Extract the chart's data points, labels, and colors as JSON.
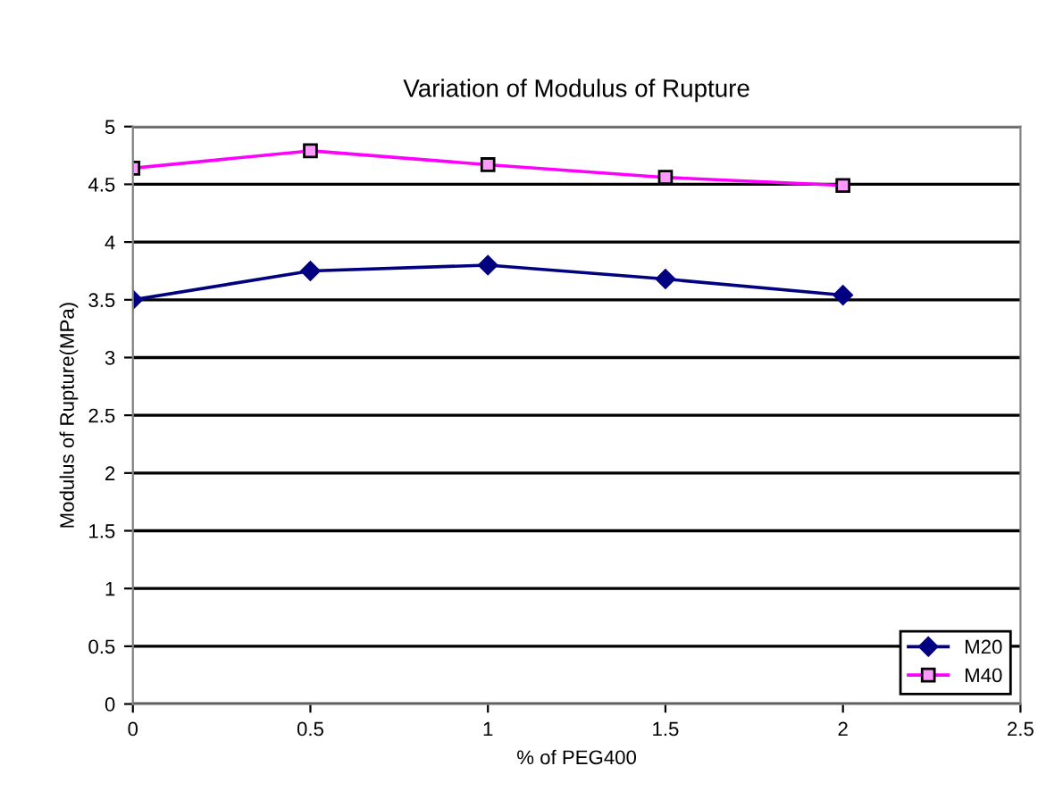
{
  "chart_data": {
    "type": "line",
    "title": "Variation of Modulus of Rupture",
    "xlabel": "% of PEG400",
    "ylabel": "Modulus of Rupture(MPa)",
    "x": [
      0,
      0.5,
      1,
      1.5,
      2
    ],
    "series": [
      {
        "name": "M20",
        "color": "#000080",
        "values": [
          3.5,
          3.75,
          3.8,
          3.68,
          3.54
        ],
        "marker": "diamond"
      },
      {
        "name": "M40",
        "color": "#ff00ff",
        "values": [
          4.64,
          4.79,
          4.67,
          4.56,
          4.49
        ],
        "marker": "square"
      }
    ],
    "xlim": [
      0,
      2.5
    ],
    "xticks": [
      0,
      0.5,
      1,
      1.5,
      2,
      2.5
    ],
    "ylim": [
      0,
      5
    ],
    "yticks": [
      0,
      0.5,
      1,
      1.5,
      2,
      2.5,
      3,
      3.5,
      4,
      4.5,
      5
    ],
    "grid": "y",
    "legend": "bottom right",
    "line_style": "solid"
  }
}
